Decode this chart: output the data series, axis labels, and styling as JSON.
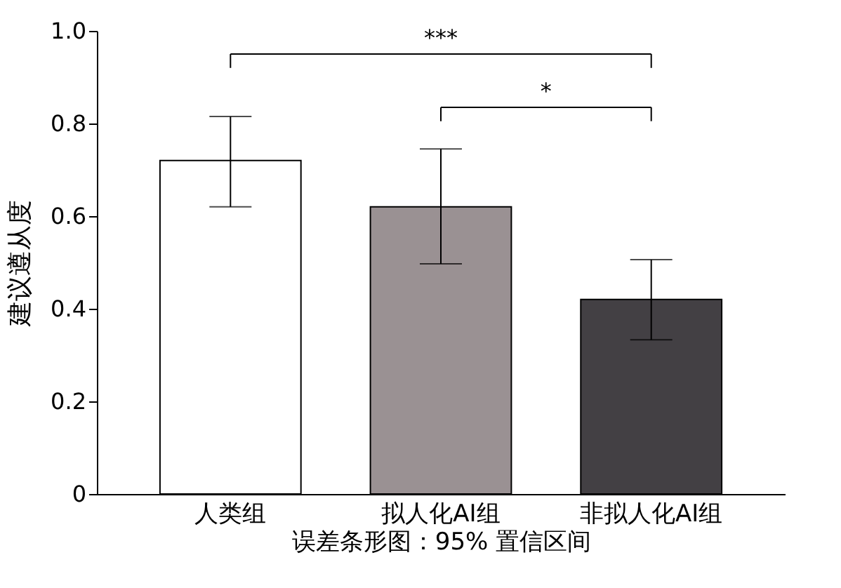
{
  "chart_data": {
    "type": "bar",
    "categories": [
      "人类组",
      "拟人化AI组",
      "非拟人化AI组"
    ],
    "values": [
      0.72,
      0.62,
      0.42
    ],
    "colors": [
      "#ffffff",
      "#9a9193",
      "#434044"
    ],
    "errors": [
      [
        0.62,
        0.815
      ],
      [
        0.497,
        0.745
      ],
      [
        0.333,
        0.506
      ]
    ],
    "ylabel": "建议遵从度",
    "xlabel": "误差条形图：95% 置信区间",
    "ylim": [
      0,
      1.0
    ],
    "yticks": [
      0,
      0.2,
      0.4,
      0.6,
      0.8,
      {
        "value": 1.0,
        "label": "1.0"
      }
    ],
    "annotations": [
      "***",
      "*"
    ],
    "grid": false
  }
}
